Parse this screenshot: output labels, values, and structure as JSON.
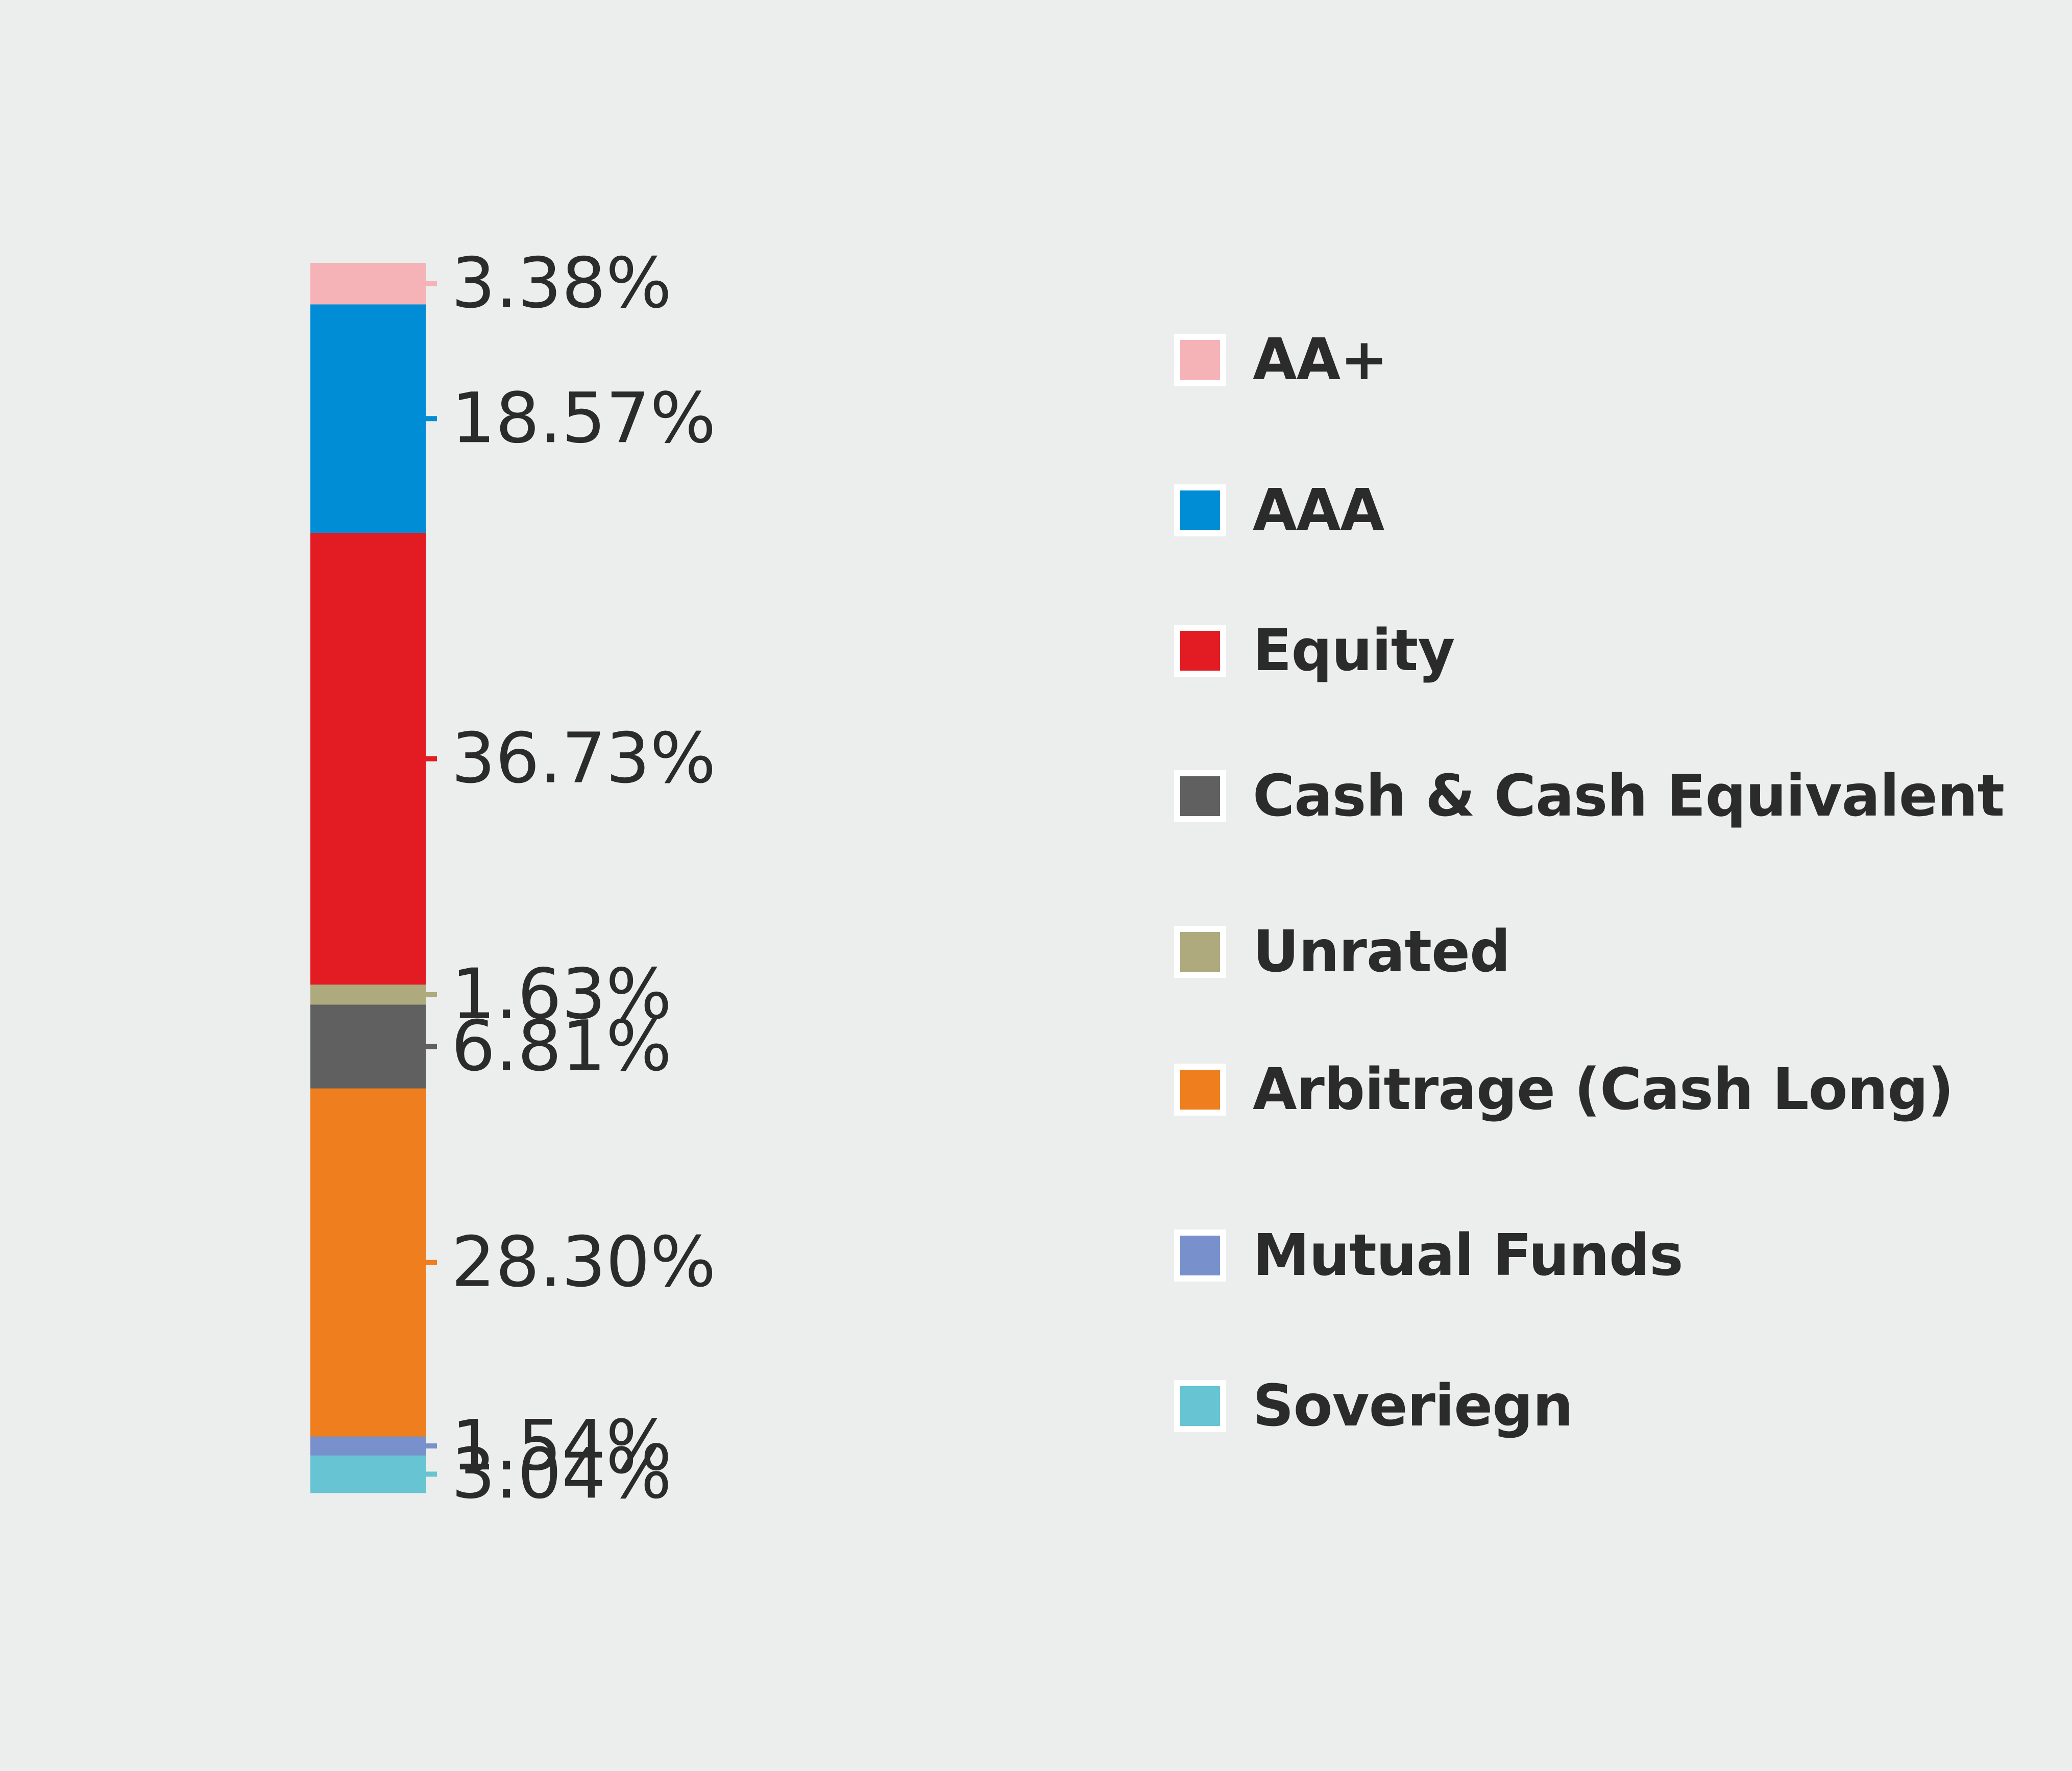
{
  "chart_data": {
    "type": "bar",
    "stacked": true,
    "categories": [
      "AA+",
      "AAA",
      "Equity",
      "Unrated",
      "Cash & Cash Equivalent",
      "Arbitrage (Cash Long)",
      "Mutual Funds",
      "Soveriegn"
    ],
    "values": [
      3.38,
      18.57,
      36.73,
      1.63,
      6.81,
      28.3,
      1.54,
      3.04
    ],
    "labels": [
      "3.38%",
      "18.57%",
      "36.73%",
      "1.63%",
      "6.81%",
      "28.30%",
      "1.54%",
      "3.04%"
    ],
    "colors": [
      "#F5B3B8",
      "#008DD5",
      "#E31B23",
      "#AEAA7E",
      "#606060",
      "#EE7E1E",
      "#7890CB",
      "#67C4D2"
    ],
    "legend": {
      "placement": "right",
      "items": [
        {
          "label": "AA+",
          "color": "#F5B3B8"
        },
        {
          "label": "AAA",
          "color": "#008DD5"
        },
        {
          "label": "Equity",
          "color": "#E31B23"
        },
        {
          "label": "Cash & Cash Equivalent",
          "color": "#606060"
        },
        {
          "label": "Unrated",
          "color": "#AEAA7E"
        },
        {
          "label": "Arbitrage (Cash Long)",
          "color": "#EE7E1E"
        },
        {
          "label": "Mutual Funds",
          "color": "#7890CB"
        },
        {
          "label": "Soveriegn",
          "color": "#67C4D2"
        }
      ]
    }
  }
}
